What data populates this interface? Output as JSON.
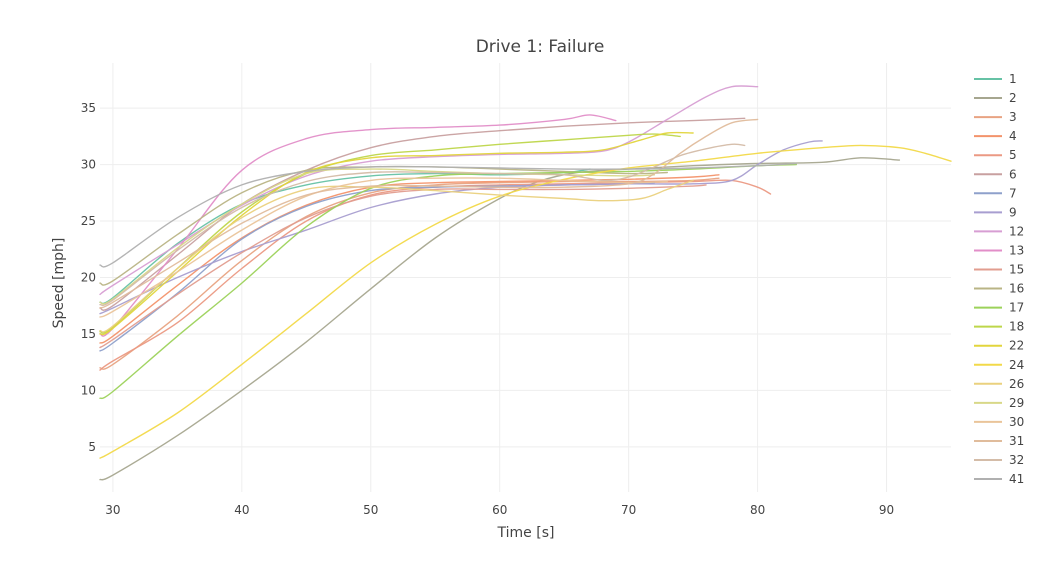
{
  "chart_data": {
    "type": "line",
    "title": "Drive 1: Failure",
    "xlabel": "Time [s]",
    "ylabel": "Speed [mph]",
    "xlim": [
      29,
      95
    ],
    "ylim": [
      1,
      39
    ],
    "x_ticks": [
      30,
      40,
      50,
      60,
      70,
      80,
      90
    ],
    "y_ticks": [
      5,
      10,
      15,
      20,
      25,
      30,
      35
    ],
    "grid": true,
    "legend_position": "right",
    "series": [
      {
        "name": "1",
        "color": "#66c2a5",
        "points": [
          [
            29,
            17.8
          ],
          [
            30,
            18.2
          ],
          [
            35,
            23
          ],
          [
            40,
            26.5
          ],
          [
            45,
            28.2
          ],
          [
            50,
            29
          ],
          [
            55,
            29.2
          ],
          [
            60,
            29.1
          ],
          [
            65,
            29.3
          ],
          [
            67,
            29.6
          ]
        ]
      },
      {
        "name": "2",
        "color": "#a6a68f",
        "points": [
          [
            29,
            2.1
          ],
          [
            30,
            2.5
          ],
          [
            35,
            6
          ],
          [
            40,
            10
          ],
          [
            45,
            14.3
          ],
          [
            50,
            19
          ],
          [
            55,
            23.5
          ],
          [
            60,
            27
          ],
          [
            63,
            28.5
          ],
          [
            66,
            29.3
          ],
          [
            70,
            29.6
          ],
          [
            75,
            29.9
          ],
          [
            80,
            30.1
          ],
          [
            85,
            30.2
          ],
          [
            88,
            30.6
          ],
          [
            91,
            30.4
          ]
        ]
      },
      {
        "name": "3",
        "color": "#e8a382",
        "points": [
          [
            29,
            12
          ],
          [
            30,
            12.3
          ],
          [
            35,
            16.6
          ],
          [
            40,
            21.5
          ],
          [
            45,
            25.4
          ],
          [
            50,
            27.5
          ],
          [
            55,
            28.2
          ],
          [
            60,
            28.4
          ],
          [
            65,
            28.5
          ],
          [
            70,
            28.5
          ],
          [
            75,
            28.6
          ],
          [
            77,
            28.8
          ]
        ]
      },
      {
        "name": "4",
        "color": "#f3936b",
        "points": [
          [
            29,
            14.2
          ],
          [
            30,
            14.8
          ],
          [
            35,
            19.3
          ],
          [
            40,
            23.5
          ],
          [
            45,
            26.4
          ],
          [
            50,
            28
          ],
          [
            55,
            28.4
          ],
          [
            60,
            28.5
          ],
          [
            65,
            28.6
          ],
          [
            70,
            28.7
          ],
          [
            75,
            28.9
          ],
          [
            77,
            29.1
          ]
        ]
      },
      {
        "name": "5",
        "color": "#eb9983",
        "points": [
          [
            29,
            11.8
          ],
          [
            30,
            12.6
          ],
          [
            35,
            16
          ],
          [
            40,
            20.8
          ],
          [
            45,
            25
          ],
          [
            50,
            27.3
          ],
          [
            55,
            28
          ],
          [
            60,
            28.2
          ],
          [
            65,
            28.3
          ],
          [
            70,
            28.4
          ],
          [
            75,
            28.5
          ],
          [
            78,
            28.6
          ],
          [
            80,
            28
          ],
          [
            81,
            27.4
          ]
        ]
      },
      {
        "name": "6",
        "color": "#c8a0a0",
        "points": [
          [
            29,
            17.3
          ],
          [
            30,
            17.5
          ],
          [
            35,
            22
          ],
          [
            40,
            26.5
          ],
          [
            45,
            29.5
          ],
          [
            50,
            31.5
          ],
          [
            55,
            32.5
          ],
          [
            60,
            33
          ],
          [
            65,
            33.4
          ],
          [
            70,
            33.7
          ],
          [
            75,
            33.9
          ],
          [
            79,
            34.1
          ]
        ]
      },
      {
        "name": "7",
        "color": "#8ea0cb",
        "points": [
          [
            29,
            13.5
          ],
          [
            30,
            14.2
          ],
          [
            35,
            18.6
          ],
          [
            40,
            23.4
          ],
          [
            45,
            26.3
          ],
          [
            50,
            27.7
          ],
          [
            55,
            28
          ],
          [
            60,
            28.1
          ],
          [
            65,
            28.2
          ],
          [
            70,
            28.3
          ],
          [
            72,
            28.4
          ]
        ]
      },
      {
        "name": "9",
        "color": "#a89ed0",
        "points": [
          [
            29,
            16.8
          ],
          [
            30,
            17.3
          ],
          [
            35,
            20
          ],
          [
            40,
            22.3
          ],
          [
            45,
            24.2
          ],
          [
            50,
            26.2
          ],
          [
            55,
            27.4
          ],
          [
            60,
            28
          ],
          [
            65,
            28.2
          ],
          [
            70,
            28.3
          ],
          [
            75,
            28.3
          ],
          [
            78,
            28.6
          ],
          [
            80,
            30
          ],
          [
            82,
            31.3
          ],
          [
            84,
            32
          ],
          [
            85,
            32.1
          ]
        ]
      },
      {
        "name": "12",
        "color": "#d79ed3",
        "points": [
          [
            29,
            18.5
          ],
          [
            30,
            19.3
          ],
          [
            35,
            22.9
          ],
          [
            40,
            26.4
          ],
          [
            45,
            29
          ],
          [
            50,
            30.3
          ],
          [
            55,
            30.7
          ],
          [
            60,
            30.9
          ],
          [
            65,
            31
          ],
          [
            68,
            31.2
          ],
          [
            70,
            32
          ],
          [
            73,
            34
          ],
          [
            76,
            36
          ],
          [
            78,
            36.9
          ],
          [
            80,
            36.9
          ]
        ]
      },
      {
        "name": "13",
        "color": "#e28ec8",
        "points": [
          [
            29,
            15
          ],
          [
            30,
            15.5
          ],
          [
            35,
            22.5
          ],
          [
            40,
            29.5
          ],
          [
            45,
            32.3
          ],
          [
            50,
            33.1
          ],
          [
            55,
            33.3
          ],
          [
            60,
            33.5
          ],
          [
            65,
            34
          ],
          [
            67,
            34.4
          ],
          [
            69,
            33.9
          ]
        ]
      },
      {
        "name": "15",
        "color": "#e29d8f",
        "points": [
          [
            29,
            13.8
          ],
          [
            30,
            14.5
          ],
          [
            35,
            18.5
          ],
          [
            40,
            22.2
          ],
          [
            45,
            25.3
          ],
          [
            50,
            27.2
          ],
          [
            55,
            27.8
          ],
          [
            60,
            27.8
          ],
          [
            65,
            27.8
          ],
          [
            70,
            27.9
          ],
          [
            75,
            28.1
          ],
          [
            76,
            28.2
          ]
        ]
      },
      {
        "name": "16",
        "color": "#b9b485",
        "points": [
          [
            29,
            19.5
          ],
          [
            30,
            19.7
          ],
          [
            35,
            23.8
          ],
          [
            40,
            27.5
          ],
          [
            45,
            29.5
          ],
          [
            50,
            29.8
          ],
          [
            55,
            29.8
          ],
          [
            60,
            29.6
          ],
          [
            65,
            29.4
          ],
          [
            70,
            29.2
          ],
          [
            73,
            29.3
          ]
        ]
      },
      {
        "name": "17",
        "color": "#9cd25a",
        "points": [
          [
            29,
            9.3
          ],
          [
            30,
            9.9
          ],
          [
            35,
            14.8
          ],
          [
            40,
            19.5
          ],
          [
            45,
            24.5
          ],
          [
            50,
            27.9
          ],
          [
            55,
            29
          ],
          [
            60,
            29.2
          ],
          [
            65,
            29.3
          ],
          [
            70,
            29.4
          ],
          [
            75,
            29.6
          ],
          [
            80,
            29.9
          ],
          [
            83,
            30
          ]
        ]
      },
      {
        "name": "18",
        "color": "#bed64a",
        "points": [
          [
            29,
            15.2
          ],
          [
            30,
            15.6
          ],
          [
            35,
            20.8
          ],
          [
            40,
            25.8
          ],
          [
            45,
            29.2
          ],
          [
            50,
            30.8
          ],
          [
            55,
            31.3
          ],
          [
            60,
            31.8
          ],
          [
            65,
            32.2
          ],
          [
            70,
            32.6
          ],
          [
            72,
            32.7
          ],
          [
            74,
            32.5
          ]
        ]
      },
      {
        "name": "22",
        "color": "#e2d53c",
        "points": [
          [
            29,
            15
          ],
          [
            30,
            15.5
          ],
          [
            35,
            20.5
          ],
          [
            40,
            25.5
          ],
          [
            45,
            29.3
          ],
          [
            50,
            30.6
          ],
          [
            55,
            30.8
          ],
          [
            60,
            31
          ],
          [
            65,
            31.1
          ],
          [
            68,
            31.3
          ],
          [
            71,
            32.2
          ],
          [
            73,
            32.8
          ],
          [
            75,
            32.8
          ]
        ]
      },
      {
        "name": "24",
        "color": "#f2d949",
        "points": [
          [
            29,
            4
          ],
          [
            30,
            4.6
          ],
          [
            35,
            8
          ],
          [
            40,
            12.3
          ],
          [
            45,
            16.8
          ],
          [
            50,
            21.3
          ],
          [
            55,
            24.7
          ],
          [
            60,
            27.2
          ],
          [
            65,
            28.7
          ],
          [
            70,
            29.7
          ],
          [
            75,
            30.3
          ],
          [
            80,
            31
          ],
          [
            85,
            31.5
          ],
          [
            88,
            31.7
          ],
          [
            91,
            31.5
          ],
          [
            93,
            31
          ],
          [
            95,
            30.3
          ]
        ]
      },
      {
        "name": "26",
        "color": "#ead17e",
        "points": [
          [
            29,
            15.3
          ],
          [
            30,
            15.7
          ],
          [
            35,
            20.8
          ],
          [
            40,
            25.3
          ],
          [
            45,
            27.8
          ],
          [
            50,
            28
          ],
          [
            55,
            27.7
          ],
          [
            60,
            27.3
          ],
          [
            65,
            27
          ],
          [
            68,
            26.8
          ],
          [
            71,
            27
          ],
          [
            73,
            27.8
          ],
          [
            75,
            28.6
          ]
        ]
      },
      {
        "name": "29",
        "color": "#d8d888",
        "points": [
          [
            29,
            17.8
          ],
          [
            30,
            18.1
          ],
          [
            35,
            22.6
          ],
          [
            40,
            26.5
          ],
          [
            45,
            29.2
          ],
          [
            50,
            29.6
          ],
          [
            55,
            29.4
          ],
          [
            60,
            29.2
          ],
          [
            65,
            29.1
          ],
          [
            70,
            29
          ],
          [
            72,
            29.1
          ]
        ]
      },
      {
        "name": "30",
        "color": "#eac49a",
        "points": [
          [
            29,
            16.5
          ],
          [
            30,
            17
          ],
          [
            35,
            20.5
          ],
          [
            40,
            24.2
          ],
          [
            45,
            27.2
          ],
          [
            50,
            28.6
          ],
          [
            55,
            28.8
          ],
          [
            60,
            28.8
          ],
          [
            65,
            28.6
          ],
          [
            70,
            28.4
          ],
          [
            73,
            28.5
          ]
        ]
      },
      {
        "name": "31",
        "color": "#e0bc9c",
        "points": [
          [
            29,
            17.3
          ],
          [
            30,
            17.8
          ],
          [
            35,
            21.3
          ],
          [
            40,
            24.8
          ],
          [
            45,
            27.3
          ],
          [
            50,
            28.1
          ],
          [
            55,
            28.1
          ],
          [
            60,
            28
          ],
          [
            65,
            28
          ],
          [
            70,
            28.3
          ],
          [
            72,
            29.2
          ],
          [
            74,
            31
          ],
          [
            76,
            32.5
          ],
          [
            78,
            33.7
          ],
          [
            80,
            34
          ]
        ]
      },
      {
        "name": "32",
        "color": "#d4bca8",
        "points": [
          [
            29,
            17.6
          ],
          [
            30,
            18
          ],
          [
            35,
            22.4
          ],
          [
            40,
            26.2
          ],
          [
            45,
            28.5
          ],
          [
            50,
            29.3
          ],
          [
            55,
            29.3
          ],
          [
            60,
            29.2
          ],
          [
            65,
            29.1
          ],
          [
            68,
            28.6
          ],
          [
            70,
            28.9
          ],
          [
            72,
            29.8
          ],
          [
            74,
            30.8
          ],
          [
            76,
            31.4
          ],
          [
            78,
            31.8
          ],
          [
            79,
            31.7
          ]
        ]
      },
      {
        "name": "41",
        "color": "#b0b0b0",
        "points": [
          [
            29,
            21.1
          ],
          [
            30,
            21.3
          ],
          [
            35,
            25.3
          ],
          [
            40,
            28.2
          ],
          [
            45,
            29.4
          ],
          [
            50,
            29.8
          ],
          [
            55,
            29.8
          ],
          [
            60,
            29.7
          ],
          [
            65,
            29.6
          ],
          [
            70,
            29.6
          ],
          [
            75,
            29.7
          ],
          [
            80,
            29.9
          ],
          [
            83,
            30.1
          ]
        ]
      }
    ]
  }
}
